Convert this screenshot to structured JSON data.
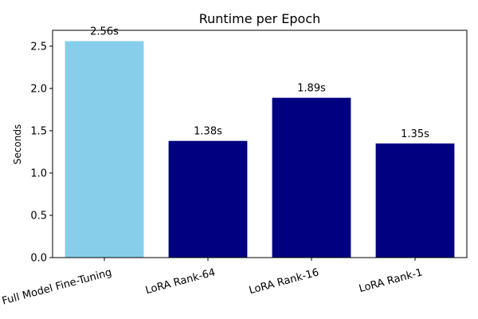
{
  "chart_data": {
    "type": "bar",
    "title": "Runtime per Epoch",
    "xlabel": "",
    "ylabel": "Seconds",
    "categories": [
      "Full Model Fine-Tuning",
      "LoRA Rank-64",
      "LoRA Rank-16",
      "LoRA Rank-1"
    ],
    "values": [
      2.56,
      1.38,
      1.89,
      1.35
    ],
    "data_labels": [
      "2.56s",
      "1.38s",
      "1.89s",
      "1.35s"
    ],
    "bar_colors": [
      "#87ceeb",
      "#000080",
      "#000080",
      "#000080"
    ],
    "ylim": [
      0,
      2.688
    ],
    "yticks": [
      0.0,
      0.5,
      1.0,
      1.5,
      2.0,
      2.5
    ],
    "ytick_labels": [
      "0.0",
      "0.5",
      "1.0",
      "1.5",
      "2.0",
      "2.5"
    ],
    "grid": false,
    "legend": "none"
  }
}
